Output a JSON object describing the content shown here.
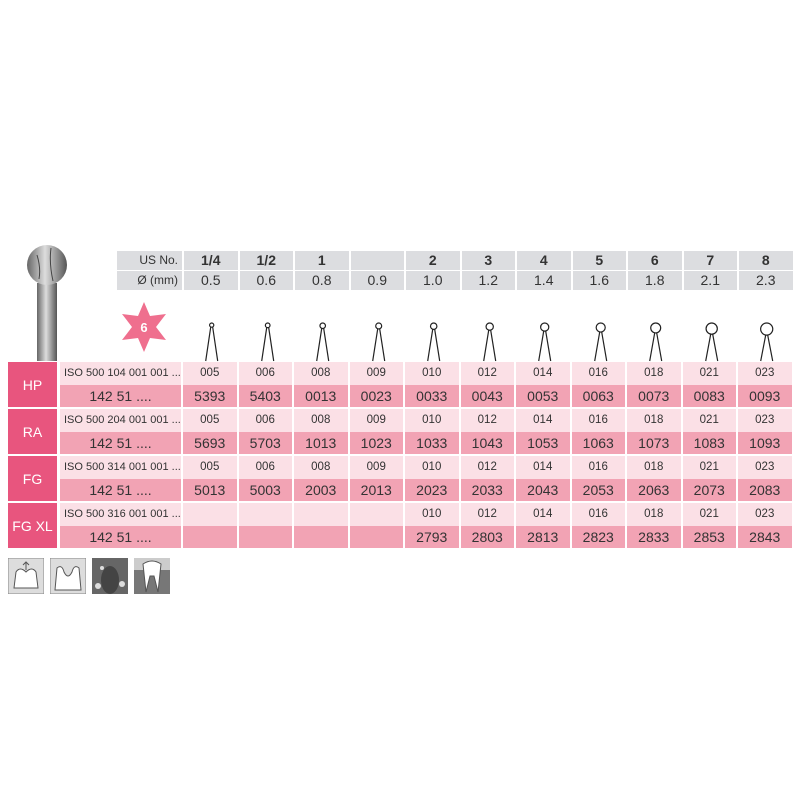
{
  "header": {
    "us_label": "US No.",
    "dia_label": "Ø (mm)",
    "us": [
      "1/4",
      "1/2",
      "1",
      "",
      "2",
      "3",
      "4",
      "5",
      "6",
      "7",
      "8"
    ],
    "dia": [
      "0.5",
      "0.6",
      "0.8",
      "0.9",
      "1.0",
      "1.2",
      "1.4",
      "1.6",
      "1.8",
      "2.1",
      "2.3"
    ]
  },
  "blade_badge": "6",
  "groups": [
    {
      "code": "HP",
      "iso": "ISO 500 104 001 001 ...",
      "ref": "142 51 ....",
      "sizes": [
        "005",
        "006",
        "008",
        "009",
        "010",
        "012",
        "014",
        "016",
        "018",
        "021",
        "023"
      ],
      "numbers": [
        "5393",
        "5403",
        "0013",
        "0023",
        "0033",
        "0043",
        "0053",
        "0063",
        "0073",
        "0083",
        "0093"
      ]
    },
    {
      "code": "RA",
      "iso": "ISO 500 204 001 001 ...",
      "ref": "142 51 ....",
      "sizes": [
        "005",
        "006",
        "008",
        "009",
        "010",
        "012",
        "014",
        "016",
        "018",
        "021",
        "023"
      ],
      "numbers": [
        "5693",
        "5703",
        "1013",
        "1023",
        "1033",
        "1043",
        "1053",
        "1063",
        "1073",
        "1083",
        "1093"
      ]
    },
    {
      "code": "FG",
      "iso": "ISO 500 314 001 001 ...",
      "ref": "142 51 ....",
      "sizes": [
        "005",
        "006",
        "008",
        "009",
        "010",
        "012",
        "014",
        "016",
        "018",
        "021",
        "023"
      ],
      "numbers": [
        "5013",
        "5003",
        "2003",
        "2013",
        "2023",
        "2033",
        "2043",
        "2053",
        "2063",
        "2073",
        "2083"
      ]
    },
    {
      "code": "FG XL",
      "iso": "ISO 500 316 001 001 ...",
      "ref": "142 51 ....",
      "sizes": [
        "",
        "",
        "",
        "",
        "010",
        "012",
        "014",
        "016",
        "018",
        "021",
        "023"
      ],
      "numbers": [
        "",
        "",
        "",
        "",
        "2793",
        "2803",
        "2813",
        "2823",
        "2833",
        "2853",
        "2843"
      ]
    }
  ],
  "colors": {
    "label": "#e8557e",
    "row_light": "#fbe0e6",
    "row_dark": "#f2a3b4",
    "header": "#dcdde0"
  },
  "indication_icons": [
    "crown-preparation-icon",
    "cavity-preparation-icon",
    "surgery-bone-icon",
    "endodontic-tooth-icon"
  ]
}
